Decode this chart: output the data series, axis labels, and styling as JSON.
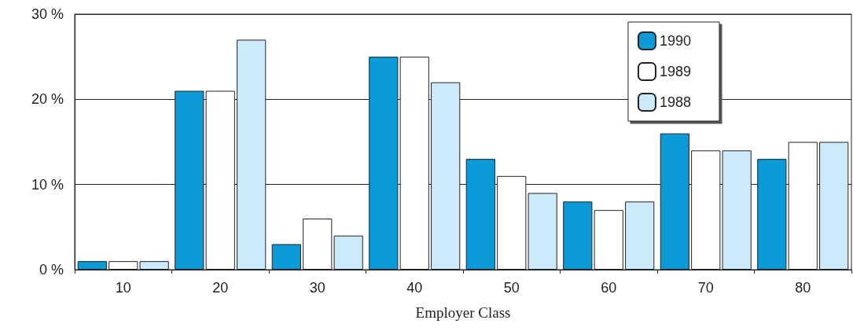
{
  "chart_data": {
    "type": "bar",
    "xlabel": "Employer Class",
    "categories": [
      "10",
      "20",
      "30",
      "40",
      "50",
      "60",
      "70",
      "80"
    ],
    "series": [
      {
        "name": "1990",
        "color": "#0a9ad8",
        "values": [
          1,
          21,
          3,
          25,
          13,
          8,
          16,
          13
        ]
      },
      {
        "name": "1989",
        "color": "#ffffff",
        "values": [
          1,
          21,
          6,
          25,
          11,
          7,
          14,
          15
        ]
      },
      {
        "name": "1988",
        "color": "#cdeafa",
        "values": [
          1,
          27,
          4,
          22,
          9,
          8,
          14,
          15
        ]
      }
    ],
    "ylim": [
      0,
      30
    ],
    "yticks": [
      {
        "value": 0,
        "label": "0 %"
      },
      {
        "value": 10,
        "label": "10 %"
      },
      {
        "value": 20,
        "label": "20 %"
      },
      {
        "value": 30,
        "label": "30 %"
      }
    ],
    "grid": "y",
    "legend": "top right"
  }
}
